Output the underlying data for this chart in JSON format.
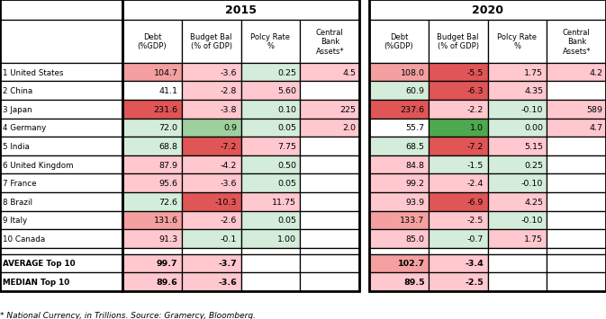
{
  "countries": [
    "1 United States",
    "2 China",
    "3 Japan",
    "4 Germany",
    "5 India",
    "6 United Kingdom",
    "7 France",
    "8 Brazil",
    "9 Italy",
    "10 Canada",
    "AVERAGE Top 10",
    "MEDIAN Top 10"
  ],
  "col_labels": [
    "Debt\n(%GDP)",
    "Budget Bal\n(% of GDP)",
    "Polcy Rate\n%",
    "Central\nBank\nAssets*"
  ],
  "data_2015": [
    [
      104.7,
      -3.6,
      0.25,
      4.5
    ],
    [
      41.1,
      -2.8,
      5.6,
      null
    ],
    [
      231.6,
      -3.8,
      0.1,
      225
    ],
    [
      72.0,
      0.9,
      0.05,
      2.0
    ],
    [
      68.8,
      -7.2,
      7.75,
      null
    ],
    [
      87.9,
      -4.2,
      0.5,
      null
    ],
    [
      95.6,
      -3.6,
      0.05,
      null
    ],
    [
      72.6,
      -10.3,
      11.75,
      null
    ],
    [
      131.6,
      -2.6,
      0.05,
      null
    ],
    [
      91.3,
      -0.1,
      1.0,
      null
    ],
    [
      99.7,
      -3.7,
      null,
      null
    ],
    [
      89.6,
      -3.6,
      null,
      null
    ]
  ],
  "data_2020": [
    [
      108.0,
      -5.5,
      1.75,
      4.2
    ],
    [
      60.9,
      -6.3,
      4.35,
      null
    ],
    [
      237.6,
      -2.2,
      -0.1,
      589
    ],
    [
      55.7,
      1.0,
      0.0,
      4.7
    ],
    [
      68.5,
      -7.2,
      5.15,
      null
    ],
    [
      84.8,
      -1.5,
      0.25,
      null
    ],
    [
      99.2,
      -2.4,
      -0.1,
      null
    ],
    [
      93.9,
      -6.9,
      4.25,
      null
    ],
    [
      133.7,
      -2.5,
      -0.1,
      null
    ],
    [
      85.0,
      -0.7,
      1.75,
      null
    ],
    [
      102.7,
      -3.4,
      null,
      null
    ],
    [
      89.5,
      -2.5,
      null,
      null
    ]
  ],
  "footnote": "* National Currency, in Trillions. Source: Gramercy, Bloomberg.",
  "year_2015": "2015",
  "year_2020": "2020",
  "RED_DARK": "#e05555",
  "RED_MED": "#f4a0a0",
  "RED_LIGHT": "#ffc7ce",
  "GREEN_DARK": "#4ea84e",
  "GREEN_MED": "#9ed09e",
  "GREEN_LIGHT": "#d4edda",
  "WHITE": "#ffffff"
}
